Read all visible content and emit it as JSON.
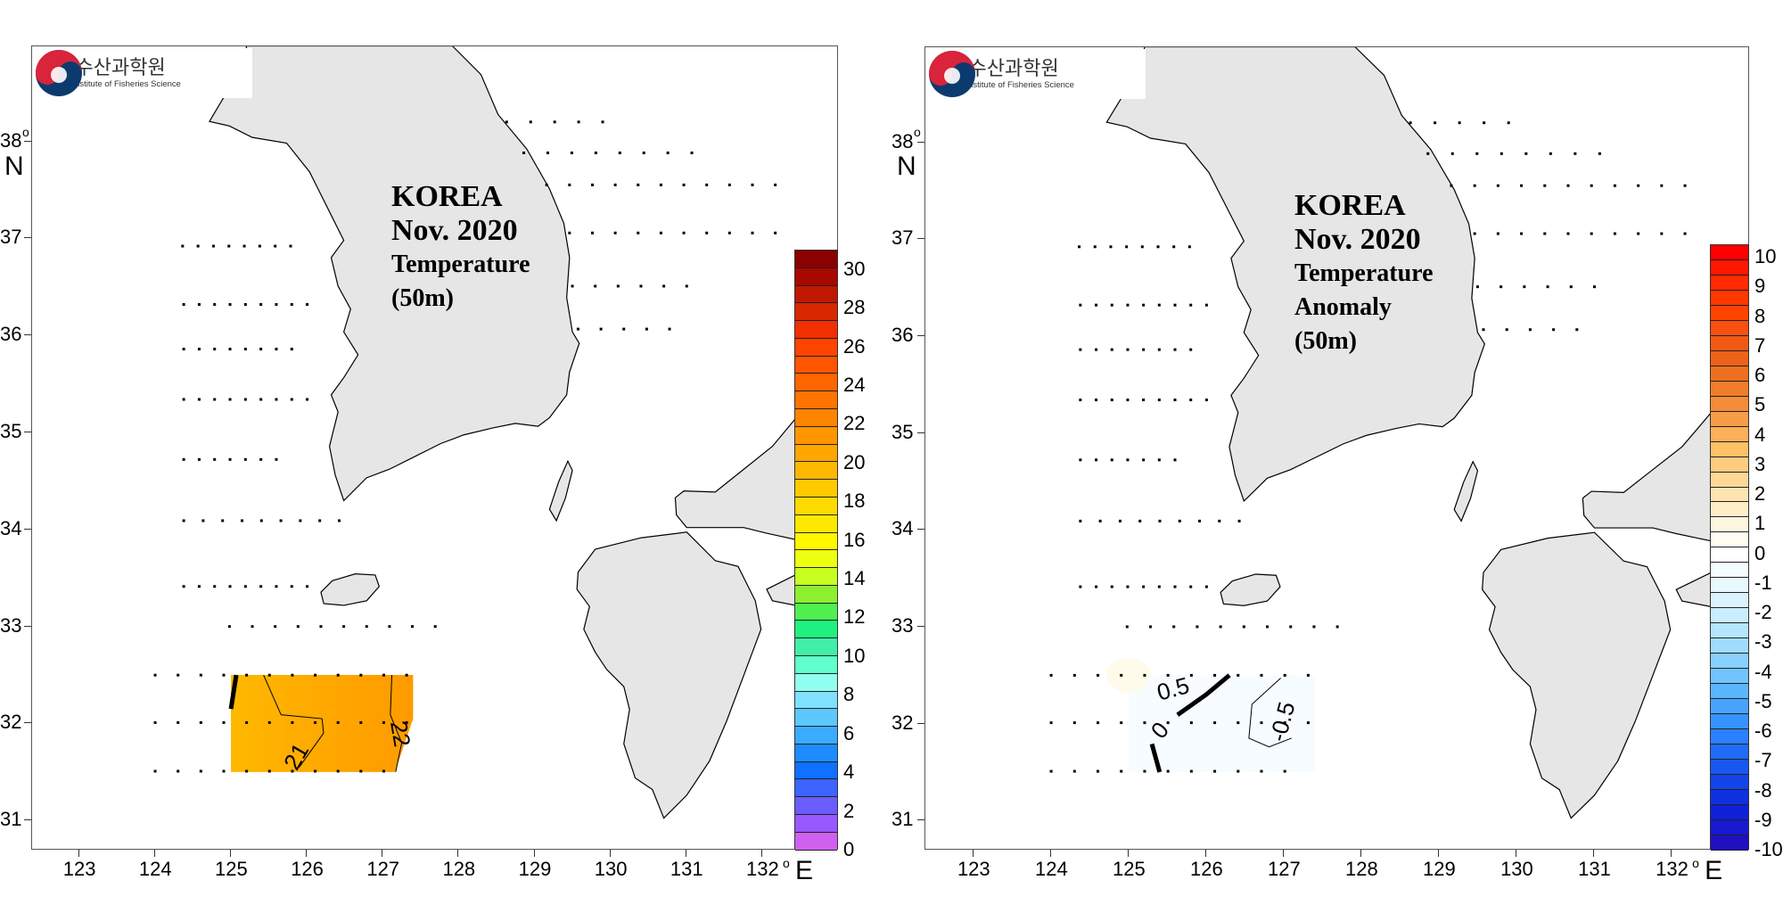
{
  "logo": {
    "korean": "국립수산과학원",
    "english": "National Institute of Fisheries Science"
  },
  "panels": [
    {
      "title": [
        "KOREA",
        "Nov. 2020",
        "Temperature",
        "(50m)"
      ],
      "colorbar": {
        "min": 0,
        "max": 31,
        "labels": [
          "30",
          "28",
          "26",
          "24",
          "22",
          "20",
          "18",
          "16",
          "14",
          "12",
          "10",
          "8",
          "6",
          "4",
          "2",
          "0"
        ],
        "colors": [
          "#8B0000",
          "#A80800",
          "#C01800",
          "#D82800",
          "#F03000",
          "#FF4400",
          "#FF5500",
          "#FF6600",
          "#FF7400",
          "#FF8400",
          "#FF9600",
          "#FFA600",
          "#FFB800",
          "#FFCA00",
          "#FFDA00",
          "#FFE800",
          "#FFF600",
          "#EEFF10",
          "#C8FF20",
          "#8CF030",
          "#50F050",
          "#20F080",
          "#40F0A8",
          "#60FFCC",
          "#90FFF0",
          "#80E0FF",
          "#5CC8FF",
          "#3AACFF",
          "#1C8CFF",
          "#1070FF",
          "#3C64FF",
          "#6A5CFF",
          "#9858FF",
          "#D060F0"
        ]
      },
      "contour_labels": [
        "21",
        "22"
      ],
      "field_colors": [
        "#FFB800",
        "#FF9A00"
      ]
    },
    {
      "title": [
        "KOREA",
        "Nov. 2020",
        "Temperature",
        "Anomaly",
        "(50m)"
      ],
      "colorbar": {
        "min": -10,
        "max": 10,
        "labels": [
          "10",
          "9",
          "8",
          "7",
          "6",
          "5",
          "4",
          "3",
          "2",
          "1",
          "0",
          "-1",
          "-2",
          "-3",
          "-4",
          "-5",
          "-6",
          "-7",
          "-8",
          "-9",
          "-10"
        ],
        "colors": [
          "#FF0000",
          "#FF1800",
          "#FF2A00",
          "#FF3800",
          "#FF4400",
          "#F85010",
          "#F05A14",
          "#EC6218",
          "#EC7020",
          "#F07C2C",
          "#F48C38",
          "#F89C48",
          "#FCB058",
          "#FFC068",
          "#FFCC80",
          "#FFD898",
          "#FFE4B0",
          "#FFEEC8",
          "#FFF6E0",
          "#FFFCF2",
          "#FFFFFF",
          "#F4FCFF",
          "#E8F8FF",
          "#DAF4FF",
          "#C8EEFF",
          "#B4E6FF",
          "#A0DCFF",
          "#88D0FF",
          "#70C4FF",
          "#5AB6FF",
          "#46A4FF",
          "#3694FF",
          "#2A80FF",
          "#206CF8",
          "#1858F0",
          "#1244E8",
          "#1030E0",
          "#1020D8",
          "#1818D0",
          "#2010C0"
        ]
      },
      "contour_labels": [
        "0.5",
        "0",
        "-0.5"
      ],
      "field_colors": [
        "#F6FCFF",
        "#FFFBEA"
      ]
    }
  ],
  "axes": {
    "lat_labels": [
      "38",
      "37",
      "36",
      "35",
      "34",
      "33",
      "32",
      "31"
    ],
    "lon_labels": [
      "123",
      "124",
      "125",
      "126",
      "127",
      "128",
      "129",
      "130",
      "131",
      "132"
    ],
    "lat_unit": "N",
    "lon_unit": "E",
    "degree": "o"
  }
}
